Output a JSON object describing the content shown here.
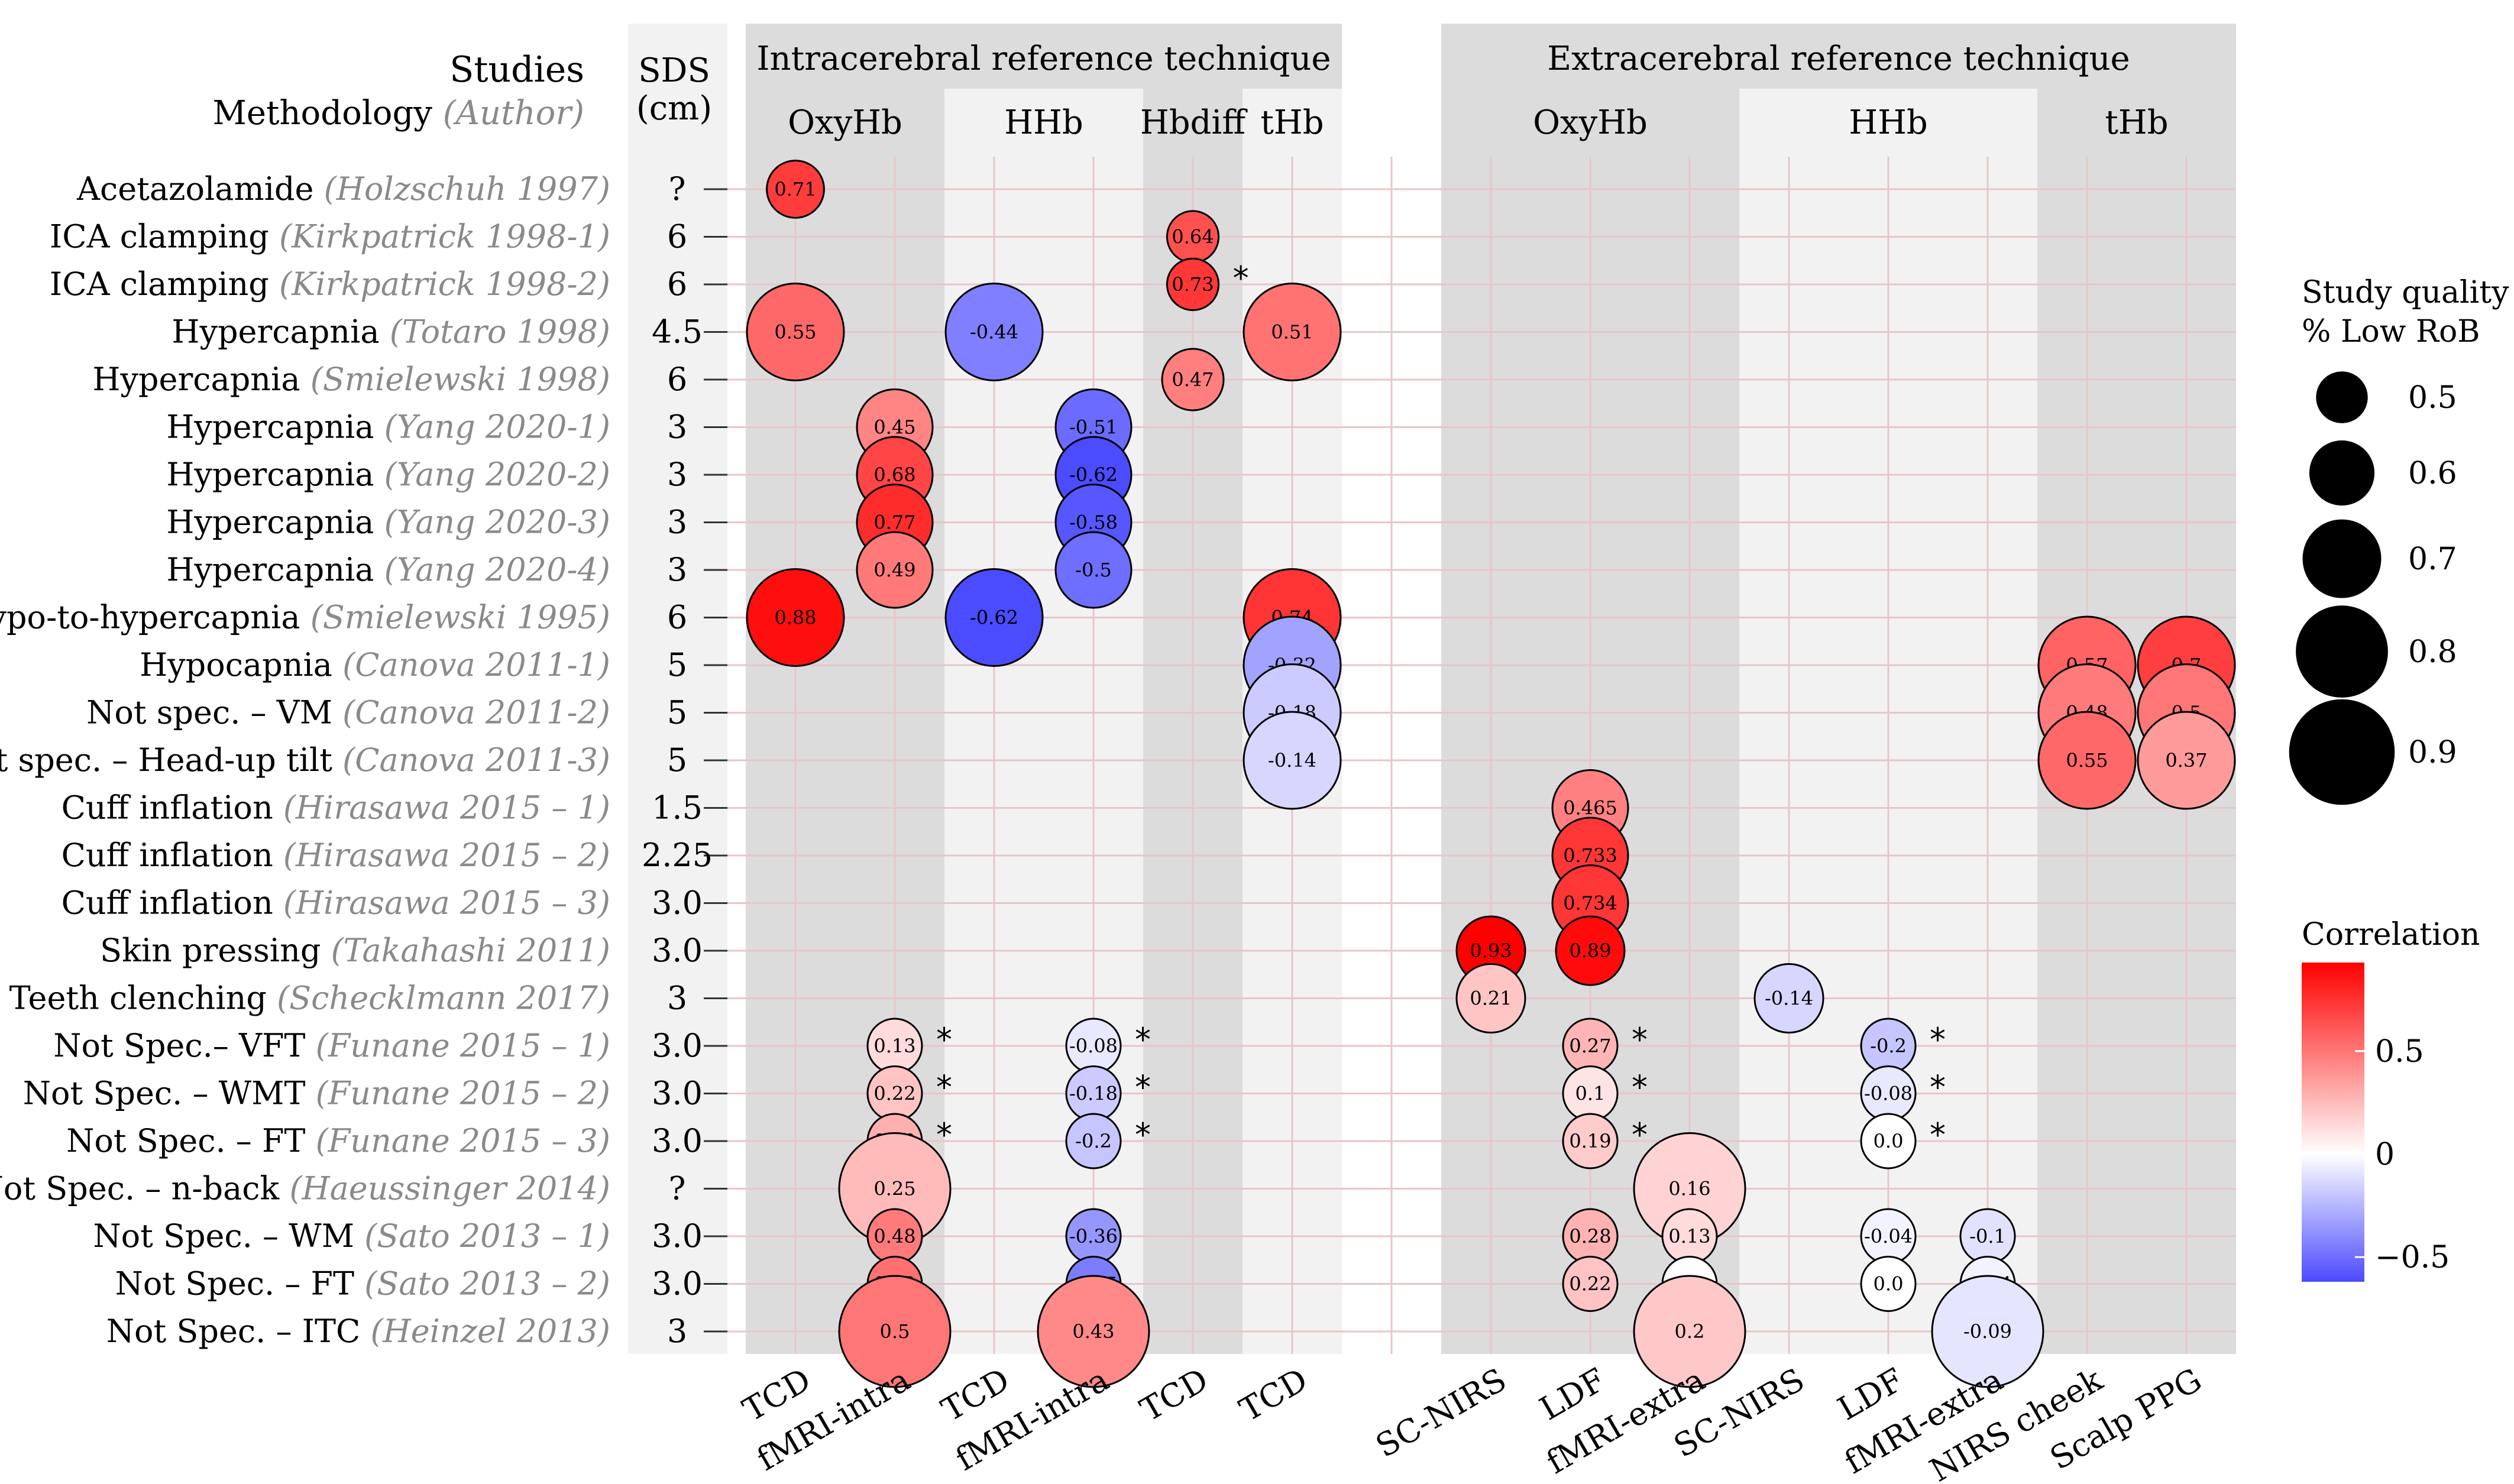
{
  "chart_data": {
    "type": "bubble-matrix",
    "header": {
      "studies": "Studies",
      "methodology": "Methodology",
      "methodology_author": "(Author)",
      "sds_line1": "SDS",
      "sds_line2": "(cm)"
    },
    "groups": [
      {
        "label": "Intracerebral reference technique",
        "from": 0,
        "to": 5
      },
      {
        "label": "Extracerebral reference technique",
        "from": 7,
        "to": 14
      }
    ],
    "subgroups": [
      {
        "label": "OxyHb",
        "from": 0,
        "to": 1,
        "shade": "dark"
      },
      {
        "label": "HHb",
        "from": 2,
        "to": 3,
        "shade": "light"
      },
      {
        "label": "Hbdiff",
        "from": 4,
        "to": 4,
        "shade": "dark"
      },
      {
        "label": "tHb",
        "from": 5,
        "to": 5,
        "shade": "light"
      },
      {
        "label": "OxyHb",
        "from": 7,
        "to": 9,
        "shade": "dark"
      },
      {
        "label": "HHb",
        "from": 10,
        "to": 12,
        "shade": "light"
      },
      {
        "label": "tHb",
        "from": 13,
        "to": 14,
        "shade": "dark"
      }
    ],
    "columns": [
      "TCD",
      "fMRI-intra",
      "TCD",
      "fMRI-intra",
      "TCD",
      "TCD",
      "",
      "SC-NIRS",
      "LDF",
      "fMRI-extra",
      "SC-NIRS",
      "LDF",
      "fMRI-extra",
      "NIRS cheek",
      "Scalp PPG"
    ],
    "rows": [
      {
        "method": "Acetazolamide",
        "author": "(Holzschuh 1997)",
        "sds": "?"
      },
      {
        "method": "ICA clamping",
        "author": "(Kirkpatrick 1998-1)",
        "sds": "6"
      },
      {
        "method": "ICA clamping",
        "author": "(Kirkpatrick 1998-2)",
        "sds": "6"
      },
      {
        "method": "Hypercapnia",
        "author": "(Totaro 1998)",
        "sds": "4.5"
      },
      {
        "method": "Hypercapnia",
        "author": "(Smielewski 1998)",
        "sds": "6"
      },
      {
        "method": "Hypercapnia",
        "author": "(Yang 2020-1)",
        "sds": "3"
      },
      {
        "method": "Hypercapnia",
        "author": "(Yang 2020-2)",
        "sds": "3"
      },
      {
        "method": "Hypercapnia",
        "author": "(Yang 2020-3)",
        "sds": "3"
      },
      {
        "method": "Hypercapnia",
        "author": "(Yang 2020-4)",
        "sds": "3"
      },
      {
        "method": "Hypo-to-hypercapnia",
        "author": "(Smielewski 1995)",
        "sds": "6"
      },
      {
        "method": "Hypocapnia",
        "author": "(Canova 2011-1)",
        "sds": "5"
      },
      {
        "method": "Not spec. – VM",
        "author": "(Canova 2011-2)",
        "sds": "5"
      },
      {
        "method": "Not spec. – Head-up tilt",
        "author": "(Canova 2011-3)",
        "sds": "5"
      },
      {
        "method": "Cuff inflation",
        "author": "(Hirasawa 2015 – 1)",
        "sds": "1.5"
      },
      {
        "method": "Cuff inflation",
        "author": "(Hirasawa 2015 – 2)",
        "sds": "2.25"
      },
      {
        "method": "Cuff inflation",
        "author": "(Hirasawa 2015 – 3)",
        "sds": "3.0"
      },
      {
        "method": "Skin pressing",
        "author": "(Takahashi 2011)",
        "sds": "3.0"
      },
      {
        "method": "Teeth clenching",
        "author": "(Schecklmann 2017)",
        "sds": "3"
      },
      {
        "method": "Not Spec.– VFT",
        "author": "(Funane 2015 – 1)",
        "sds": "3.0"
      },
      {
        "method": "Not Spec. – WMT",
        "author": "(Funane 2015 – 2)",
        "sds": "3.0"
      },
      {
        "method": "Not Spec. – FT",
        "author": "(Funane 2015 – 3)",
        "sds": "3.0"
      },
      {
        "method": "Not Spec. – n-back",
        "author": "(Haeussinger 2014)",
        "sds": "?"
      },
      {
        "method": "Not Spec. – WM",
        "author": "(Sato 2013 – 1)",
        "sds": "3.0"
      },
      {
        "method": "Not Spec. – FT",
        "author": "(Sato 2013 – 2)",
        "sds": "3.0"
      },
      {
        "method": "Not Spec. – ITC",
        "author": "(Heinzel 2013)",
        "sds": "3"
      }
    ],
    "points": [
      {
        "row": 0,
        "col": 0,
        "value": 0.71,
        "label": "0.71",
        "quality": 0.52
      },
      {
        "row": 1,
        "col": 4,
        "value": 0.64,
        "label": "0.64",
        "quality": 0.48
      },
      {
        "row": 2,
        "col": 4,
        "value": 0.73,
        "label": "0.73",
        "quality": 0.48,
        "star": true
      },
      {
        "row": 3,
        "col": 0,
        "value": 0.55,
        "label": "0.55",
        "quality": 0.8
      },
      {
        "row": 3,
        "col": 2,
        "value": -0.44,
        "label": "-0.44",
        "quality": 0.8
      },
      {
        "row": 3,
        "col": 5,
        "value": 0.51,
        "label": "0.51",
        "quality": 0.8
      },
      {
        "row": 4,
        "col": 4,
        "value": 0.47,
        "label": "0.47",
        "quality": 0.55
      },
      {
        "row": 5,
        "col": 1,
        "value": 0.45,
        "label": "0.45",
        "quality": 0.65
      },
      {
        "row": 5,
        "col": 3,
        "value": -0.51,
        "label": "-0.51",
        "quality": 0.65
      },
      {
        "row": 6,
        "col": 1,
        "value": 0.68,
        "label": "0.68",
        "quality": 0.65
      },
      {
        "row": 6,
        "col": 3,
        "value": -0.62,
        "label": "-0.62",
        "quality": 0.65
      },
      {
        "row": 7,
        "col": 1,
        "value": 0.77,
        "label": "0.77",
        "quality": 0.65
      },
      {
        "row": 7,
        "col": 3,
        "value": -0.58,
        "label": "-0.58",
        "quality": 0.65
      },
      {
        "row": 8,
        "col": 1,
        "value": 0.49,
        "label": "0.49",
        "quality": 0.65
      },
      {
        "row": 8,
        "col": 3,
        "value": -0.5,
        "label": "-0.5",
        "quality": 0.65
      },
      {
        "row": 9,
        "col": 0,
        "value": 0.88,
        "label": "0.88",
        "quality": 0.8
      },
      {
        "row": 9,
        "col": 2,
        "value": -0.62,
        "label": "-0.62",
        "quality": 0.8
      },
      {
        "row": 9,
        "col": 5,
        "value": 0.74,
        "label": "0.74",
        "quality": 0.8
      },
      {
        "row": 10,
        "col": 5,
        "value": -0.32,
        "label": "-0.32",
        "quality": 0.8
      },
      {
        "row": 10,
        "col": 13,
        "value": 0.57,
        "label": "0.57",
        "quality": 0.8
      },
      {
        "row": 10,
        "col": 14,
        "value": 0.7,
        "label": "0.7",
        "quality": 0.8
      },
      {
        "row": 11,
        "col": 5,
        "value": -0.18,
        "label": "-0.18",
        "quality": 0.8
      },
      {
        "row": 11,
        "col": 13,
        "value": 0.48,
        "label": "0.48",
        "quality": 0.8
      },
      {
        "row": 11,
        "col": 14,
        "value": 0.5,
        "label": "0.5",
        "quality": 0.8
      },
      {
        "row": 12,
        "col": 5,
        "value": -0.14,
        "label": "-0.14",
        "quality": 0.8
      },
      {
        "row": 12,
        "col": 13,
        "value": 0.55,
        "label": "0.55",
        "quality": 0.8
      },
      {
        "row": 12,
        "col": 14,
        "value": 0.37,
        "label": "0.37",
        "quality": 0.8
      },
      {
        "row": 13,
        "col": 8,
        "value": 0.465,
        "label": "0.465",
        "quality": 0.65
      },
      {
        "row": 14,
        "col": 8,
        "value": 0.733,
        "label": "0.733",
        "quality": 0.65
      },
      {
        "row": 15,
        "col": 8,
        "value": 0.734,
        "label": "0.734",
        "quality": 0.65
      },
      {
        "row": 16,
        "col": 7,
        "value": 0.93,
        "label": "0.93",
        "quality": 0.6
      },
      {
        "row": 16,
        "col": 8,
        "value": 0.89,
        "label": "0.89",
        "quality": 0.6
      },
      {
        "row": 17,
        "col": 7,
        "value": 0.21,
        "label": "0.21",
        "quality": 0.6
      },
      {
        "row": 17,
        "col": 10,
        "value": -0.14,
        "label": "-0.14",
        "quality": 0.6
      },
      {
        "row": 18,
        "col": 1,
        "value": 0.13,
        "label": "0.13",
        "quality": 0.5,
        "star": true
      },
      {
        "row": 18,
        "col": 3,
        "value": -0.08,
        "label": "-0.08",
        "quality": 0.5,
        "star": true
      },
      {
        "row": 18,
        "col": 8,
        "value": 0.27,
        "label": "0.27",
        "quality": 0.5,
        "star": true
      },
      {
        "row": 18,
        "col": 11,
        "value": -0.2,
        "label": "-0.2",
        "quality": 0.5,
        "star": true
      },
      {
        "row": 19,
        "col": 1,
        "value": 0.22,
        "label": "0.22",
        "quality": 0.5,
        "star": true
      },
      {
        "row": 19,
        "col": 3,
        "value": -0.18,
        "label": "-0.18",
        "quality": 0.5,
        "star": true
      },
      {
        "row": 19,
        "col": 8,
        "value": 0.1,
        "label": "0.1",
        "quality": 0.5,
        "star": true
      },
      {
        "row": 19,
        "col": 11,
        "value": -0.08,
        "label": "-0.08",
        "quality": 0.5,
        "star": true
      },
      {
        "row": 20,
        "col": 1,
        "value": 0.29,
        "label": "0.29",
        "quality": 0.5,
        "star": true
      },
      {
        "row": 20,
        "col": 3,
        "value": -0.2,
        "label": "-0.2",
        "quality": 0.5,
        "star": true
      },
      {
        "row": 20,
        "col": 8,
        "value": 0.19,
        "label": "0.19",
        "quality": 0.5,
        "star": true
      },
      {
        "row": 20,
        "col": 11,
        "value": 0.0,
        "label": "0.0",
        "quality": 0.5,
        "star": true
      },
      {
        "row": 21,
        "col": 1,
        "value": 0.25,
        "label": "0.25",
        "quality": 0.9
      },
      {
        "row": 21,
        "col": 9,
        "value": 0.16,
        "label": "0.16",
        "quality": 0.9
      },
      {
        "row": 22,
        "col": 1,
        "value": 0.48,
        "label": "0.48",
        "quality": 0.5
      },
      {
        "row": 22,
        "col": 3,
        "value": -0.36,
        "label": "-0.36",
        "quality": 0.5
      },
      {
        "row": 22,
        "col": 8,
        "value": 0.28,
        "label": "0.28",
        "quality": 0.5
      },
      {
        "row": 22,
        "col": 9,
        "value": 0.13,
        "label": "0.13",
        "quality": 0.5
      },
      {
        "row": 22,
        "col": 11,
        "value": -0.04,
        "label": "-0.04",
        "quality": 0.5
      },
      {
        "row": 22,
        "col": 12,
        "value": -0.1,
        "label": "-0.1",
        "quality": 0.5
      },
      {
        "row": 23,
        "col": 1,
        "value": 0.52,
        "label": "0.52",
        "quality": 0.5
      },
      {
        "row": 23,
        "col": 3,
        "value": -0.45,
        "label": "-0.45",
        "quality": 0.5
      },
      {
        "row": 23,
        "col": 8,
        "value": 0.22,
        "label": "0.22",
        "quality": 0.5
      },
      {
        "row": 23,
        "col": 9,
        "value": 0.0,
        "label": "0.0",
        "quality": 0.5
      },
      {
        "row": 23,
        "col": 11,
        "value": 0.0,
        "label": "0.0",
        "quality": 0.5
      },
      {
        "row": 23,
        "col": 12,
        "value": -0.04,
        "label": "-0.04",
        "quality": 0.5
      },
      {
        "row": 24,
        "col": 1,
        "value": 0.5,
        "label": "0.5",
        "quality": 0.9
      },
      {
        "row": 24,
        "col": 3,
        "value": 0.43,
        "label": "0.43",
        "quality": 0.9
      },
      {
        "row": 24,
        "col": 9,
        "value": 0.2,
        "label": "0.2",
        "quality": 0.9
      },
      {
        "row": 24,
        "col": 12,
        "value": -0.09,
        "label": "-0.09",
        "quality": 0.9
      }
    ],
    "size_legend": {
      "title_line1": "Study quality",
      "title_line2": "% Low RoB",
      "values": [
        0.5,
        0.6,
        0.7,
        0.8,
        0.9
      ],
      "labels": [
        "0.5",
        "0.6",
        "0.7",
        "0.8",
        "0.9"
      ]
    },
    "color_legend": {
      "title": "Correlation",
      "ticks": [
        0.5,
        0,
        -0.5
      ],
      "tick_labels": [
        "0.5",
        "0",
        "−0.5"
      ],
      "range": [
        -0.62,
        0.93
      ]
    },
    "colors": {
      "positive": "#ff0000",
      "neutral": "#ffffff",
      "negative": "#4b4bff",
      "band_dark": "#dcdcdc",
      "band_light": "#f2f2f2",
      "grid": "#e8c6c8"
    }
  }
}
